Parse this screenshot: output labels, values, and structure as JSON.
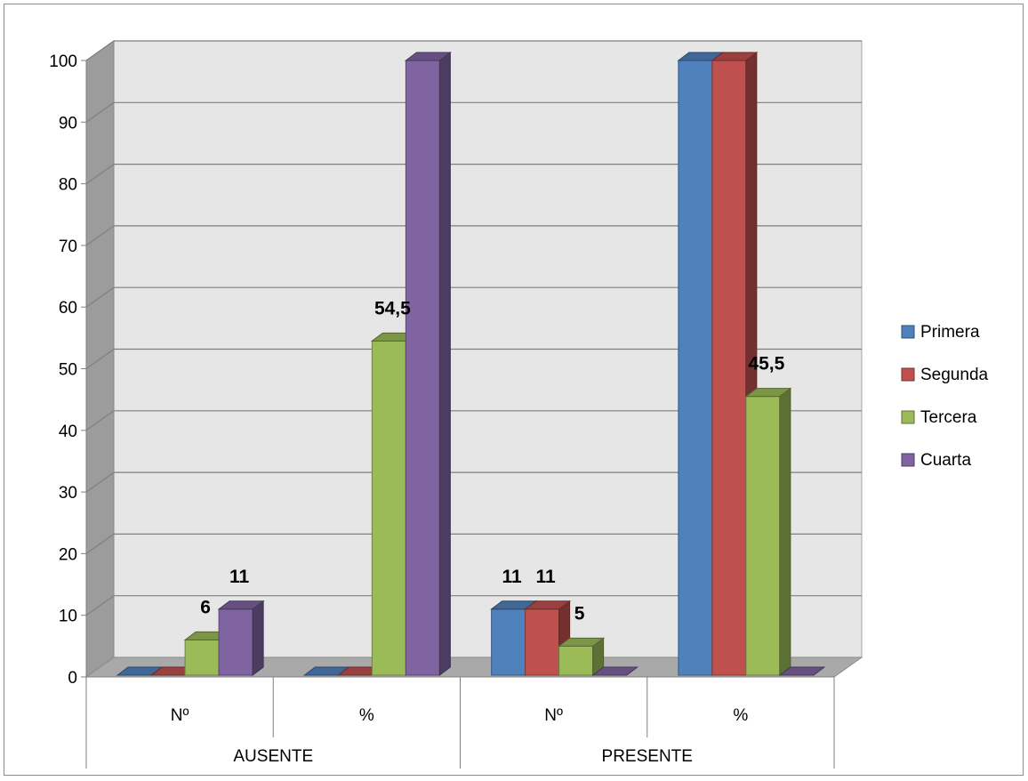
{
  "chart_data": {
    "type": "bar",
    "groups": [
      {
        "label": "AUSENTE",
        "categories": [
          "Nº",
          "%"
        ]
      },
      {
        "label": "PRESENTE",
        "categories": [
          "Nº",
          "%"
        ]
      }
    ],
    "series": [
      {
        "name": "Primera",
        "color": "#4f81bd",
        "values": [
          0,
          0,
          11,
          100
        ]
      },
      {
        "name": "Segunda",
        "color": "#c0504d",
        "values": [
          0,
          0,
          11,
          100
        ]
      },
      {
        "name": "Tercera",
        "color": "#9bbb59",
        "values": [
          6,
          54.5,
          5,
          45.5
        ]
      },
      {
        "name": "Cuarta",
        "color": "#8064a2",
        "values": [
          11,
          100,
          0,
          0
        ]
      }
    ],
    "data_labels": [
      {
        "series": 2,
        "category": 0,
        "text": "6"
      },
      {
        "series": 3,
        "category": 0,
        "text": "11"
      },
      {
        "series": 2,
        "category": 1,
        "text": "54,5"
      },
      {
        "series": 0,
        "category": 2,
        "text": "11"
      },
      {
        "series": 1,
        "category": 2,
        "text": "11"
      },
      {
        "series": 2,
        "category": 2,
        "text": "5"
      },
      {
        "series": 2,
        "category": 3,
        "text": "45,5"
      }
    ],
    "yticks": [
      "0",
      "10",
      "20",
      "30",
      "40",
      "50",
      "60",
      "70",
      "80",
      "90",
      "100"
    ],
    "ylim": [
      0,
      100
    ],
    "grid": true,
    "legend": "right",
    "style": "3d-clustered-column"
  }
}
